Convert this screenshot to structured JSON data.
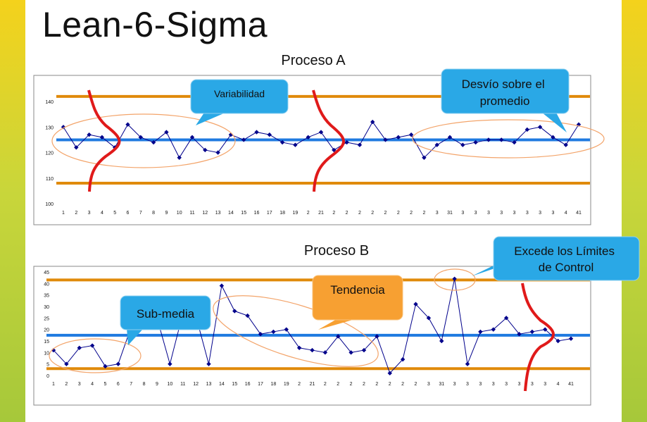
{
  "slide": {
    "title": "Lean-6-Sigma"
  },
  "colors": {
    "series": "#00008b",
    "mean_line": "#1f7ae0",
    "control_line": "#e08a0a",
    "curve": "#e01a1a",
    "callout_blue": "#2aa8e6",
    "callout_orange": "#f7a032",
    "ellipse": "#f3a46a"
  },
  "chart_data": [
    {
      "type": "line",
      "title": "Proceso A",
      "ylim": [
        100,
        145
      ],
      "yticks": [
        "100",
        "110",
        "120",
        "130",
        "140"
      ],
      "x_labels": [
        "1",
        "2",
        "3",
        "4",
        "5",
        "6",
        "7",
        "8",
        "9",
        "10",
        "11",
        "12",
        "13",
        "14",
        "15",
        "16",
        "17",
        "18",
        "19",
        "2",
        "21",
        "2",
        "2",
        "2",
        "2",
        "2",
        "2",
        "2",
        "2",
        "3",
        "31",
        "3",
        "3",
        "3",
        "3",
        "3",
        "3",
        "3",
        "3",
        "4",
        "41"
      ],
      "values": [
        130,
        122,
        127,
        126,
        122,
        131,
        126,
        124,
        128,
        118,
        126,
        121,
        120,
        127,
        125,
        128,
        127,
        124,
        123,
        126,
        128,
        121,
        124,
        123,
        132,
        125,
        126,
        127,
        118,
        123,
        126,
        123,
        124,
        125,
        125,
        124,
        129,
        130,
        126,
        123,
        131
      ],
      "mean": 125,
      "ucl": 142,
      "lcl": 108,
      "annotations": [
        {
          "text": "Variabilidad"
        },
        {
          "text": "Desvío sobre el promedio"
        }
      ]
    },
    {
      "type": "line",
      "title": "Proceso B",
      "ylim": [
        0,
        45
      ],
      "yticks": [
        "0",
        "5",
        "10",
        "15",
        "20",
        "25",
        "30",
        "35",
        "40",
        "45"
      ],
      "x_labels": [
        "1",
        "2",
        "3",
        "4",
        "5",
        "6",
        "7",
        "8",
        "9",
        "10",
        "11",
        "12",
        "13",
        "14",
        "15",
        "16",
        "17",
        "18",
        "19",
        "2",
        "21",
        "2",
        "2",
        "2",
        "2",
        "2",
        "2",
        "2",
        "2",
        "3",
        "31",
        "3",
        "3",
        "3",
        "3",
        "3",
        "3",
        "3",
        "3",
        "4",
        "41"
      ],
      "values": [
        11,
        5,
        12,
        13,
        4,
        5,
        21,
        24,
        25,
        5,
        27,
        26,
        5,
        39,
        28,
        26,
        18,
        19,
        20,
        12,
        11,
        10,
        17,
        10,
        11,
        17,
        1,
        7,
        31,
        25,
        15,
        42,
        5,
        19,
        20,
        25,
        18,
        19,
        20,
        15,
        16
      ],
      "mean": 17.5,
      "ucl": 41.5,
      "lcl": 3,
      "annotations": [
        {
          "text": "Sub-media"
        },
        {
          "text": "Tendencia"
        },
        {
          "text": "Excede los Límites de Control"
        }
      ]
    }
  ]
}
